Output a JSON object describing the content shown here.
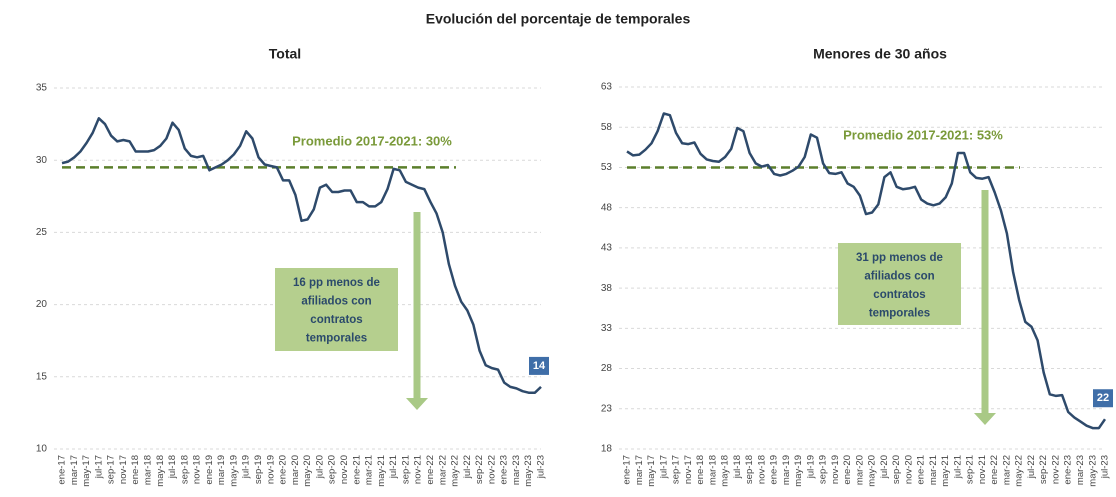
{
  "title": "Evolución del porcentaje de temporales",
  "chart_data": [
    {
      "type": "line",
      "title": "Total",
      "color": "#2e4a6b",
      "categories": [
        "ene-17",
        null,
        "mar-17",
        null,
        "may-17",
        null,
        "jul-17",
        null,
        "sep-17",
        null,
        "nov-17",
        null,
        "ene-18",
        null,
        "mar-18",
        null,
        "may-18",
        null,
        "jul-18",
        null,
        "sep-18",
        null,
        "nov-18",
        null,
        "ene-19",
        null,
        "mar-19",
        null,
        "may-19",
        null,
        "jul-19",
        null,
        "sep-19",
        null,
        "nov-19",
        null,
        "ene-20",
        null,
        "mar-20",
        null,
        "may-20",
        null,
        "jul-20",
        null,
        "sep-20",
        null,
        "nov-20",
        null,
        "ene-21",
        null,
        "mar-21",
        null,
        "may-21",
        null,
        "jul-21",
        null,
        "sep-21",
        null,
        "nov-21",
        null,
        "ene-22",
        null,
        "mar-22",
        null,
        "may-22",
        null,
        "jul-22",
        null,
        "sep-22",
        null,
        "nov-22",
        null,
        "ene-23",
        null,
        "mar-23",
        null,
        "may-23",
        null,
        "jul-23"
      ],
      "values": [
        29.8,
        29.9,
        30.2,
        30.6,
        31.2,
        31.9,
        32.9,
        32.5,
        31.7,
        31.3,
        31.4,
        31.3,
        30.6,
        30.6,
        30.6,
        30.7,
        31.0,
        31.5,
        32.6,
        32.1,
        30.8,
        30.3,
        30.2,
        30.3,
        29.3,
        29.5,
        29.7,
        30.0,
        30.4,
        31.0,
        32.0,
        31.5,
        30.2,
        29.7,
        29.6,
        29.5,
        28.6,
        28.6,
        27.6,
        25.8,
        25.9,
        26.6,
        28.1,
        28.3,
        27.8,
        27.8,
        27.9,
        27.9,
        27.1,
        27.1,
        26.8,
        26.8,
        27.1,
        28.0,
        29.4,
        29.3,
        28.5,
        28.3,
        28.1,
        28.0,
        27.1,
        26.3,
        25.0,
        22.8,
        21.3,
        20.2,
        19.6,
        18.6,
        16.8,
        15.8,
        15.6,
        15.5,
        14.6,
        14.3,
        14.2,
        14.0,
        13.9,
        13.9,
        14.3
      ],
      "last_value_label": "14",
      "ylim": [
        10,
        35
      ],
      "yticks": [
        10,
        15,
        20,
        25,
        30,
        35
      ],
      "grid": true,
      "average": 29.5,
      "average_color": "#5b7f2b",
      "average_label": "Promedio 2017-2021: 30%",
      "annotation_lines": [
        "16 pp menos de",
        "afiliados con",
        "contratos",
        "temporales"
      ]
    },
    {
      "type": "line",
      "title": "Menores de 30 años",
      "color": "#2e4a6b",
      "categories": [
        "ene-17",
        null,
        "mar-17",
        null,
        "may-17",
        null,
        "jul-17",
        null,
        "sep-17",
        null,
        "nov-17",
        null,
        "ene-18",
        null,
        "mar-18",
        null,
        "may-18",
        null,
        "jul-18",
        null,
        "sep-18",
        null,
        "nov-18",
        null,
        "ene-19",
        null,
        "mar-19",
        null,
        "may-19",
        null,
        "jul-19",
        null,
        "sep-19",
        null,
        "nov-19",
        null,
        "ene-20",
        null,
        "mar-20",
        null,
        "may-20",
        null,
        "jul-20",
        null,
        "sep-20",
        null,
        "nov-20",
        null,
        "ene-21",
        null,
        "mar-21",
        null,
        "may-21",
        null,
        "jul-21",
        null,
        "sep-21",
        null,
        "nov-21",
        null,
        "ene-22",
        null,
        "mar-22",
        null,
        "may-22",
        null,
        "jul-22",
        null,
        "sep-22",
        null,
        "nov-22",
        null,
        "ene-23",
        null,
        "mar-23",
        null,
        "may-23",
        null,
        "jul-23"
      ],
      "values": [
        55.0,
        54.5,
        54.6,
        55.2,
        56.0,
        57.5,
        59.7,
        59.5,
        57.3,
        56.0,
        55.9,
        56.1,
        54.7,
        54.0,
        53.8,
        53.7,
        54.3,
        55.3,
        57.9,
        57.5,
        54.8,
        53.5,
        53.1,
        53.3,
        52.2,
        52.0,
        52.2,
        52.6,
        53.1,
        54.3,
        57.1,
        56.7,
        53.5,
        52.3,
        52.2,
        52.4,
        51.0,
        50.6,
        49.5,
        47.2,
        47.4,
        48.4,
        51.8,
        52.4,
        50.6,
        50.3,
        50.4,
        50.6,
        49.0,
        48.5,
        48.3,
        48.5,
        49.3,
        51.0,
        54.8,
        54.8,
        52.4,
        51.7,
        51.6,
        51.8,
        49.9,
        47.7,
        44.8,
        40.0,
        36.5,
        33.8,
        33.2,
        31.5,
        27.5,
        24.8,
        24.6,
        24.7,
        22.6,
        21.9,
        21.4,
        20.9,
        20.6,
        20.6,
        21.7
      ],
      "last_value_label": "22",
      "ylim": [
        18,
        63
      ],
      "yticks": [
        18,
        23,
        28,
        33,
        38,
        43,
        48,
        53,
        58,
        63
      ],
      "grid": true,
      "average": 53,
      "average_color": "#5b7f2b",
      "average_label": "Promedio 2017-2021: 53%",
      "annotation_lines": [
        "31 pp menos de",
        "afiliados con",
        "contratos",
        "temporales"
      ]
    }
  ]
}
